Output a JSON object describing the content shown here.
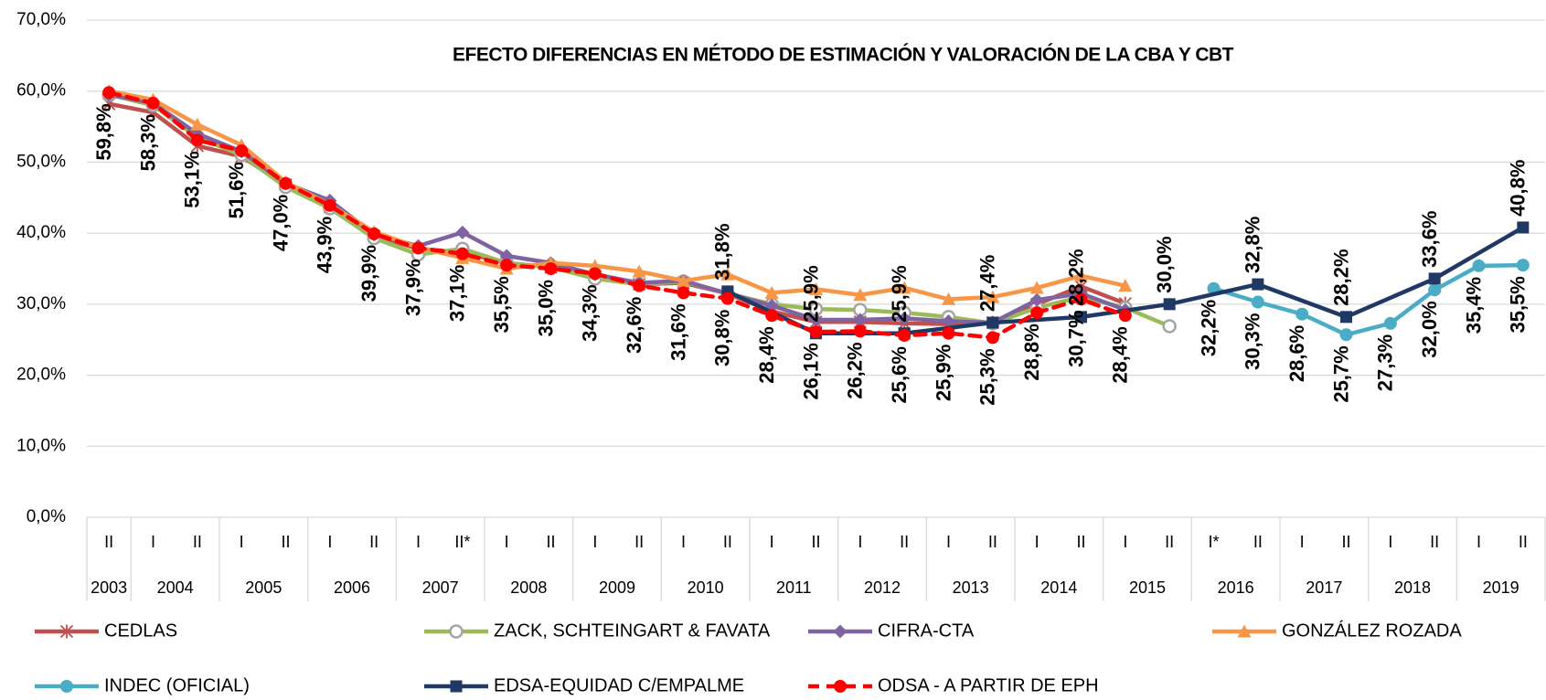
{
  "chart_data": {
    "type": "line",
    "title": "EFECTO DIFERENCIAS EN MÉTODO DE ESTIMACIÓN Y VALORACIÓN DE LA CBA Y CBT",
    "categories": [
      "II",
      "I",
      "II",
      "I",
      "II",
      "I",
      "II",
      "I",
      "II*",
      "I",
      "II",
      "I",
      "II",
      "I",
      "II",
      "I",
      "II",
      "I",
      "II",
      "I",
      "II",
      "I",
      "II",
      "I",
      "II",
      "I*",
      "II",
      "I",
      "II",
      "I",
      "II",
      "I",
      "II"
    ],
    "category_groups": [
      "2003",
      "2004",
      null,
      "2005",
      null,
      "2006",
      null,
      "2007",
      null,
      "2008",
      null,
      "2009",
      null,
      "2010",
      null,
      "2011",
      null,
      "2012",
      null,
      "2013",
      null,
      "2014",
      null,
      "2015",
      null,
      "2016",
      null,
      "2017",
      null,
      "2018",
      null,
      "2019",
      null
    ],
    "ylim": [
      0,
      70
    ],
    "yticks": [
      {
        "value": 0,
        "label": "0,0%"
      },
      {
        "value": 10,
        "label": "10,0%"
      },
      {
        "value": 20,
        "label": "20,0%"
      },
      {
        "value": 30,
        "label": "30,0%"
      },
      {
        "value": 40,
        "label": "40,0%"
      },
      {
        "value": 50,
        "label": "50,0%"
      },
      {
        "value": 60,
        "label": "60,0%"
      },
      {
        "value": 70,
        "label": "70,0%"
      }
    ],
    "grid": true,
    "series": [
      {
        "name": "CEDLAS",
        "color": "#c0504d",
        "marker": "x",
        "values": [
          58.2,
          57,
          52.3,
          50.8,
          46.8,
          43.7,
          39.6,
          37.8,
          37.3,
          35.8,
          35.2,
          34,
          32.8,
          33,
          31.5,
          29,
          27.5,
          27.5,
          27.3,
          27.2,
          27.4,
          30,
          32.5,
          30.1,
          null,
          null,
          null,
          null,
          null,
          null,
          null,
          null,
          null
        ]
      },
      {
        "name": "ZACK, SCHTEINGART & FAVATA",
        "color": "#9bbb59",
        "marker": "circle",
        "values": [
          59.5,
          58,
          53.5,
          51,
          46.5,
          43.5,
          39.3,
          37,
          37.8,
          35.8,
          35.2,
          33.6,
          32.8,
          33.2,
          31.5,
          30,
          29.3,
          29.2,
          28.8,
          28.2,
          27.3,
          29.5,
          31,
          29.5,
          26.9,
          null,
          null,
          null,
          null,
          null,
          null,
          null,
          null
        ]
      },
      {
        "name": "CIFRA-CTA",
        "color": "#8064a2",
        "marker": "diamond",
        "values": [
          59.5,
          58.3,
          54,
          51.5,
          47,
          44.6,
          39.8,
          38.2,
          40.1,
          36.8,
          35.8,
          34.2,
          33,
          33.3,
          31.5,
          29.8,
          27.8,
          27.8,
          28,
          27.6,
          27.4,
          30.6,
          31.5,
          29.2,
          null,
          null,
          null,
          null,
          null,
          null,
          null,
          null,
          null
        ]
      },
      {
        "name": "GONZÁLEZ ROZADA",
        "color": "#f79646",
        "marker": "triangle",
        "values": [
          60,
          58.8,
          55.3,
          52.4,
          47.2,
          44,
          40.2,
          38,
          36.5,
          35,
          35.8,
          35.4,
          34.6,
          33.3,
          34.2,
          31.6,
          32.1,
          31.3,
          32.3,
          30.7,
          31,
          32.3,
          34,
          32.6,
          null,
          null,
          null,
          null,
          null,
          null,
          null,
          null,
          null
        ]
      },
      {
        "name": "INDEC (OFICIAL)",
        "color": "#4bacc6",
        "marker": "circle",
        "values": [
          null,
          null,
          null,
          null,
          null,
          null,
          null,
          null,
          null,
          null,
          null,
          null,
          null,
          null,
          null,
          null,
          null,
          null,
          null,
          null,
          null,
          null,
          null,
          null,
          null,
          32.2,
          30.3,
          28.6,
          25.7,
          27.3,
          32.0,
          35.4,
          35.5
        ],
        "value_labels": [
          null,
          null,
          null,
          null,
          null,
          null,
          null,
          null,
          null,
          null,
          null,
          null,
          null,
          null,
          null,
          null,
          null,
          null,
          null,
          null,
          null,
          null,
          null,
          null,
          null,
          "32,2%",
          "30,3%",
          "28,6%",
          "25,7%",
          "27,3%",
          "32,0%",
          "35,4%",
          "35,5%"
        ]
      },
      {
        "name": "EDSA-EQUIDAD C/EMPALME",
        "color": "#1f3864",
        "marker": "square",
        "label_position": "above",
        "values": [
          null,
          null,
          null,
          null,
          null,
          null,
          null,
          null,
          null,
          null,
          null,
          null,
          null,
          null,
          31.8,
          null,
          25.9,
          null,
          25.9,
          null,
          27.4,
          null,
          28.2,
          null,
          30.0,
          null,
          32.8,
          null,
          28.2,
          null,
          33.6,
          null,
          40.8
        ],
        "value_labels": [
          null,
          null,
          null,
          null,
          null,
          null,
          null,
          null,
          null,
          null,
          null,
          null,
          null,
          null,
          "31,8%",
          null,
          "25,9%",
          null,
          "25,9%",
          null,
          "27,4%",
          null,
          "28,2%",
          null,
          "30,0%",
          null,
          "32,8%",
          null,
          "28,2%",
          null,
          "33,6%",
          null,
          "40,8%"
        ]
      },
      {
        "name": "ODSA - A PARTIR DE EPH",
        "color": "#ff0000",
        "marker": "circle",
        "dashed": true,
        "values": [
          59.8,
          58.3,
          53.1,
          51.6,
          47.0,
          43.9,
          39.9,
          37.9,
          37.1,
          35.5,
          35.0,
          34.3,
          32.6,
          31.6,
          30.8,
          28.4,
          26.1,
          26.2,
          25.6,
          25.9,
          25.3,
          28.8,
          30.7,
          28.4,
          null,
          null,
          null,
          null,
          null,
          null,
          null,
          null,
          null
        ],
        "value_labels": [
          "59,8%",
          "58,3%",
          "53,1%",
          "51,6%",
          "47,0%",
          "43,9%",
          "39,9%",
          "37,9%",
          "37,1%",
          "35,5%",
          "35,0%",
          "34,3%",
          "32,6%",
          "31,6%",
          "30,8%",
          "28,4%",
          "26,1%",
          "26,2%",
          "25,6%",
          "25,9%",
          "25,3%",
          "28,8%",
          "30,7%",
          "28,4%",
          null,
          null,
          null,
          null,
          null,
          null,
          null,
          null,
          null
        ]
      }
    ]
  }
}
